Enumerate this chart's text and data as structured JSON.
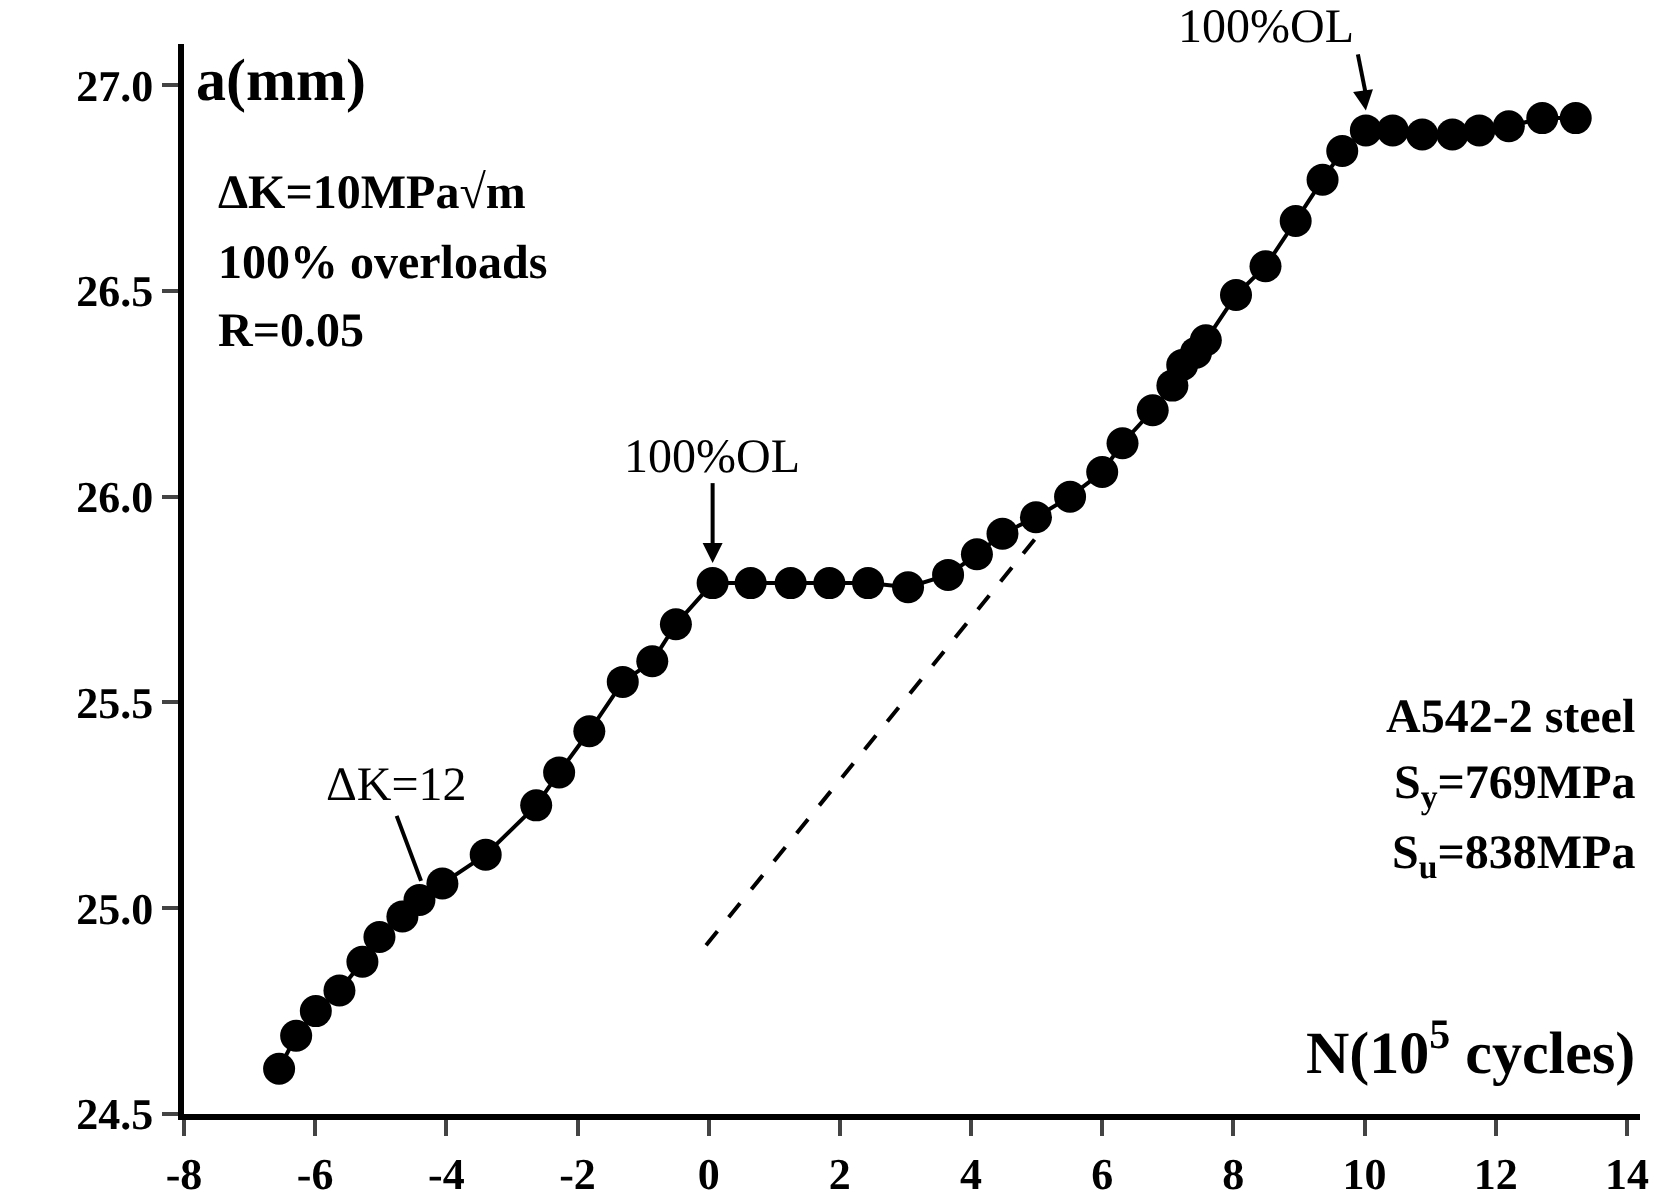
{
  "chart_data": {
    "type": "line",
    "xlabel": "N(10$^{5}$ cycles)",
    "ylabel": "a(mm)",
    "xlim": [
      -8,
      14.2
    ],
    "xticks": [
      -8,
      -6,
      -4,
      -2,
      0,
      2,
      4,
      6,
      8,
      10,
      12,
      14
    ],
    "ylim": [
      24.5,
      27.1
    ],
    "yticks": [
      24.5,
      {
        "value": 25,
        "label": "25.0"
      },
      26.5,
      {
        "value": 26,
        "label": "26.0"
      },
      25.5,
      {
        "value": 27,
        "label": "27.0"
      }
    ],
    "grid": false,
    "series": [
      {
        "color": "#000000",
        "marker": "circle",
        "line_style": "solid",
        "x": [
          -6.55,
          -6.29,
          -5.99,
          -5.63,
          -5.28,
          -5.02,
          -4.67,
          -4.41,
          -4.06,
          -3.4,
          -2.63,
          -2.28,
          -1.82,
          -1.31,
          -0.86,
          -0.5,
          0.06,
          0.64,
          1.25,
          1.84,
          2.43,
          3.04,
          3.65,
          4.09,
          4.48,
          4.99,
          5.51,
          6.0,
          6.31,
          6.77,
          7.07,
          7.22,
          7.43,
          7.58,
          8.04,
          8.49,
          8.95,
          9.36,
          9.66,
          10.02,
          10.43,
          10.88,
          11.34,
          11.75,
          12.2,
          12.71,
          13.22
        ],
        "values": [
          24.61,
          24.69,
          24.75,
          24.8,
          24.87,
          24.93,
          24.98,
          25.02,
          25.06,
          25.13,
          25.25,
          25.33,
          25.43,
          25.55,
          25.6,
          25.69,
          25.79,
          25.79,
          25.79,
          25.79,
          25.79,
          25.78,
          25.81,
          25.86,
          25.91,
          25.95,
          26.0,
          26.06,
          26.13,
          26.21,
          26.27,
          26.32,
          26.35,
          26.38,
          26.49,
          26.56,
          26.67,
          26.77,
          26.84,
          26.89,
          26.89,
          26.88,
          26.88,
          26.89,
          26.9,
          26.92,
          26.92
        ]
      },
      {
        "color": "#000000",
        "marker": "none",
        "line_style": "dashed",
        "x": [
          -0.04,
          4.99
        ],
        "values": [
          24.91,
          25.9
        ]
      }
    ],
    "annotations": [
      {
        "text": "100%OL",
        "x": 0.06,
        "y": 25.79
      },
      {
        "text": "100%OL",
        "x": 10.02,
        "y": 26.89
      },
      {
        "text": "ΔK=12",
        "x": -4.3,
        "y": 25.03
      },
      "ΔK=10MPa√m",
      "100% overloads",
      "R=0.05",
      "A542-2 steel",
      "S$_{y}$=769MPa",
      "S$_{u}$=838MPa"
    ]
  }
}
